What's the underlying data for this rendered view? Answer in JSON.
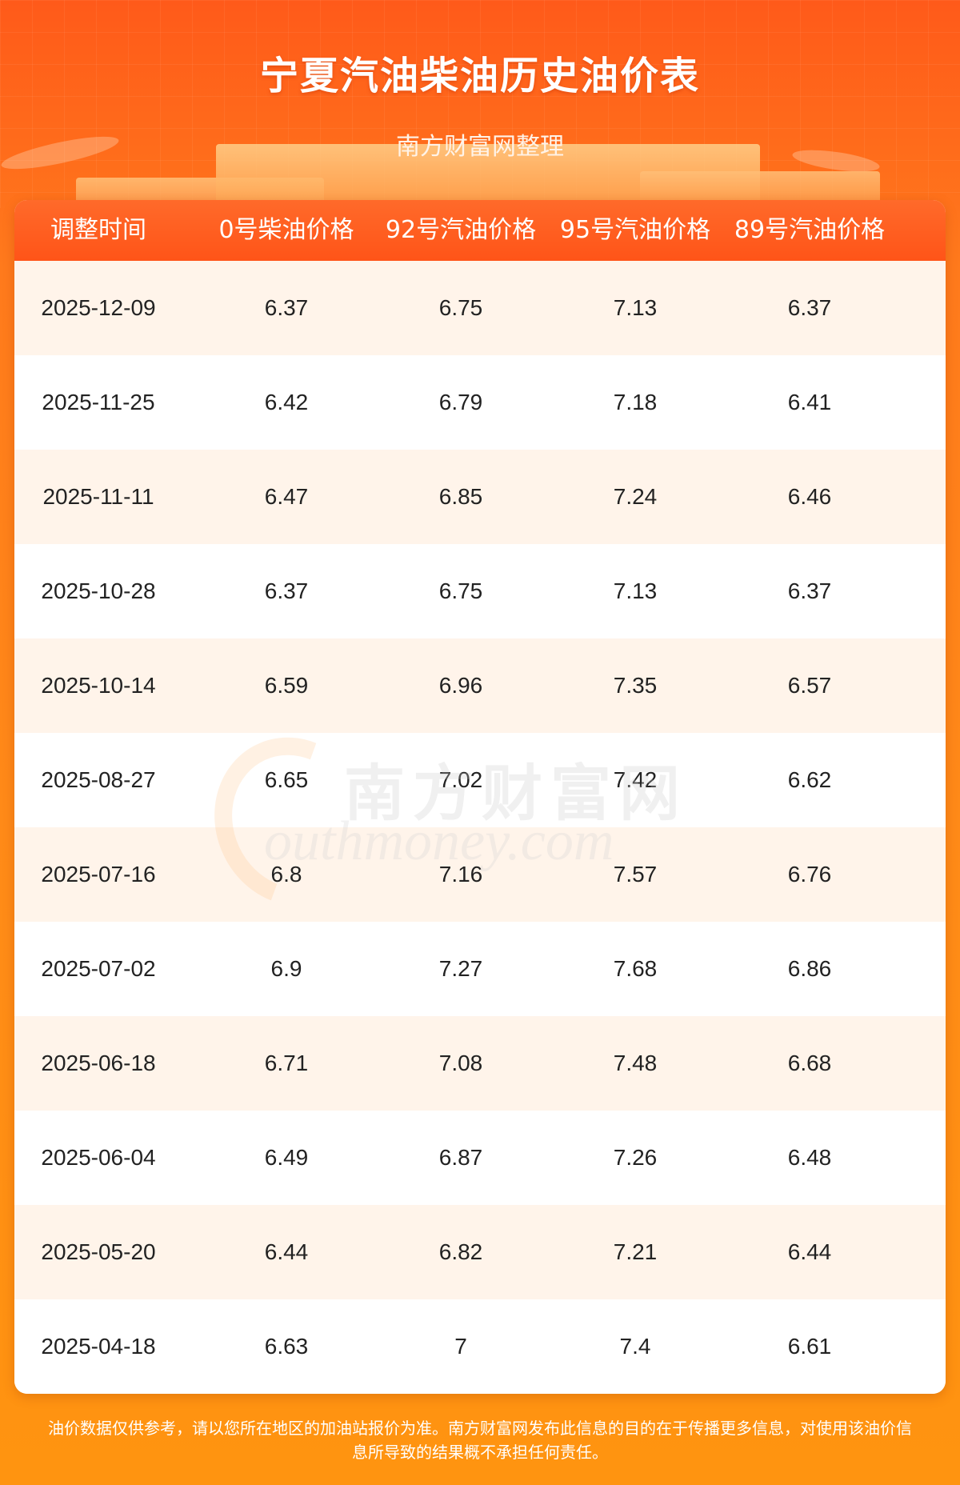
{
  "header": {
    "title": "宁夏汽油柴油历史油价表",
    "subtitle": "南方财富网整理"
  },
  "table": {
    "columns": [
      "调整时间",
      "0号柴油价格",
      "92号汽油价格",
      "95号汽油价格",
      "89号汽油价格"
    ],
    "rows": [
      [
        "2025-12-09",
        "6.37",
        "6.75",
        "7.13",
        "6.37"
      ],
      [
        "2025-11-25",
        "6.42",
        "6.79",
        "7.18",
        "6.41"
      ],
      [
        "2025-11-11",
        "6.47",
        "6.85",
        "7.24",
        "6.46"
      ],
      [
        "2025-10-28",
        "6.37",
        "6.75",
        "7.13",
        "6.37"
      ],
      [
        "2025-10-14",
        "6.59",
        "6.96",
        "7.35",
        "6.57"
      ],
      [
        "2025-08-27",
        "6.65",
        "7.02",
        "7.42",
        "6.62"
      ],
      [
        "2025-07-16",
        "6.8",
        "7.16",
        "7.57",
        "6.76"
      ],
      [
        "2025-07-02",
        "6.9",
        "7.27",
        "7.68",
        "6.86"
      ],
      [
        "2025-06-18",
        "6.71",
        "7.08",
        "7.48",
        "6.68"
      ],
      [
        "2025-06-04",
        "6.49",
        "6.87",
        "7.26",
        "6.48"
      ],
      [
        "2025-05-20",
        "6.44",
        "6.82",
        "7.21",
        "6.44"
      ],
      [
        "2025-04-18",
        "6.63",
        "7",
        "7.4",
        "6.61"
      ]
    ]
  },
  "watermark": {
    "cn": "南方财富网",
    "en": "outhmoney.com"
  },
  "footer": {
    "line1": "油价数据仅供参考，请以您所在地区的加油站报价为准。南方财富网发布此信息的目的在于传播更多信息，对使用该油价信",
    "line2": "息所导致的结果概不承担任何责任。"
  },
  "colors": {
    "header_bg": "#ff5a1a",
    "table_header": "#ff5418",
    "row_alt": "#fff4ea"
  }
}
